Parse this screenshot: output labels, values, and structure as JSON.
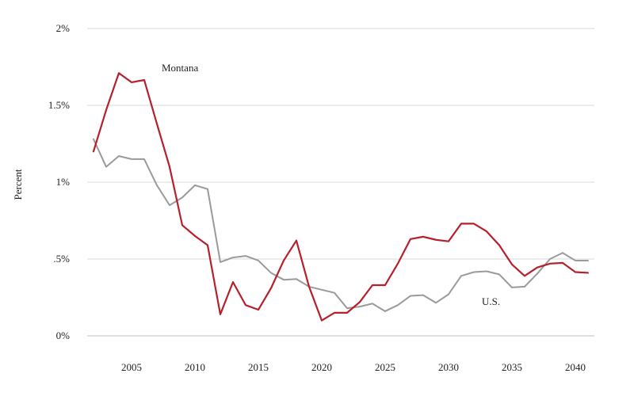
{
  "chart_data": {
    "type": "line",
    "title": "",
    "xlabel": "",
    "ylabel": "Percent",
    "xlim": [
      2001.5,
      2041.5
    ],
    "ylim": [
      0,
      2
    ],
    "x_ticks": [
      2005,
      2010,
      2015,
      2020,
      2025,
      2030,
      2035,
      2040
    ],
    "x_tick_labels": [
      "2005",
      "2010",
      "2015",
      "2020",
      "2025",
      "2030",
      "2035",
      "2040"
    ],
    "y_ticks": [
      0,
      0.5,
      1,
      1.5,
      2
    ],
    "y_tick_labels": [
      "0%",
      ".5%",
      "1%",
      "1.5%",
      "2%"
    ],
    "grid": true,
    "legend": "none",
    "x": [
      2002,
      2003,
      2004,
      2005,
      2006,
      2007,
      2008,
      2009,
      2010,
      2011,
      2012,
      2013,
      2014,
      2015,
      2016,
      2017,
      2018,
      2019,
      2020,
      2021,
      2022,
      2023,
      2024,
      2025,
      2026,
      2027,
      2028,
      2029,
      2030,
      2031,
      2032,
      2033,
      2034,
      2035,
      2036,
      2037,
      2038,
      2039,
      2040,
      2041
    ],
    "series": [
      {
        "name": "Montana",
        "color": "#b5202b",
        "values": [
          1.2,
          1.47,
          1.71,
          1.65,
          1.665,
          1.38,
          1.1,
          0.72,
          0.65,
          0.59,
          0.14,
          0.35,
          0.2,
          0.17,
          0.31,
          0.49,
          0.62,
          0.32,
          0.1,
          0.15,
          0.15,
          0.22,
          0.33,
          0.33,
          0.47,
          0.63,
          0.645,
          0.625,
          0.615,
          0.73,
          0.73,
          0.68,
          0.59,
          0.465,
          0.39,
          0.445,
          0.47,
          0.475,
          0.415,
          0.41
        ]
      },
      {
        "name": "U.S.",
        "color": "#9a9a9a",
        "values": [
          1.28,
          1.1,
          1.17,
          1.15,
          1.15,
          0.98,
          0.85,
          0.9,
          0.98,
          0.955,
          0.48,
          0.51,
          0.52,
          0.49,
          0.41,
          0.365,
          0.37,
          0.32,
          0.3,
          0.28,
          0.18,
          0.19,
          0.21,
          0.16,
          0.2,
          0.26,
          0.265,
          0.215,
          0.27,
          0.39,
          0.415,
          0.42,
          0.4,
          0.315,
          0.32,
          0.405,
          0.5,
          0.54,
          0.49,
          0.49
        ]
      }
    ]
  }
}
